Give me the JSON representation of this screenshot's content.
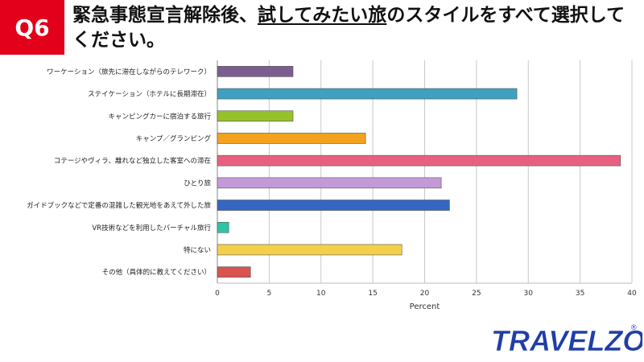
{
  "header": {
    "badge": "Q6",
    "title_part1": "緊急事態宣言解除後、",
    "title_underlined": "試してみたい旅",
    "title_part2": "のスタイルをすべて選択してください。"
  },
  "logo": {
    "text": "TRAVELZOO",
    "registered": "®"
  },
  "colors": {
    "badge": "#e2001a",
    "logo_blue": "#1f3ea8",
    "logo_red": "#e2001a"
  },
  "chart_data": {
    "type": "bar",
    "orientation": "horizontal",
    "categories": [
      "ワーケーション（旅先に滞在しながらのテレワーク）",
      "ステイケーション（ホテルに長期滞在）",
      "キャンピングカーに宿泊する旅行",
      "キャンプ／グランピング",
      "コテージやヴィラ、離れなど独立した客室への滞在",
      "ひとり旅",
      "ガイドブックなどで定番の混雑した観光地をあえて外した旅",
      "VR技術などを利用したバーチャル旅行",
      "特にない",
      "その他（具体的に教えてください）"
    ],
    "values": [
      7.3,
      28.9,
      7.3,
      14.3,
      38.9,
      21.6,
      22.4,
      1.1,
      17.8,
      3.2
    ],
    "bar_colors": [
      "#7b5e8f",
      "#3fa0bf",
      "#97c12b",
      "#f2a21d",
      "#e8607f",
      "#c29ad8",
      "#3466c2",
      "#2fc4a5",
      "#f4d04a",
      "#d9534f"
    ],
    "xlabel": "Percent",
    "xlim": [
      0,
      40
    ],
    "xticks": [
      "0",
      "5",
      "10",
      "15",
      "20",
      "25",
      "30",
      "35",
      "40"
    ],
    "grid": true
  }
}
